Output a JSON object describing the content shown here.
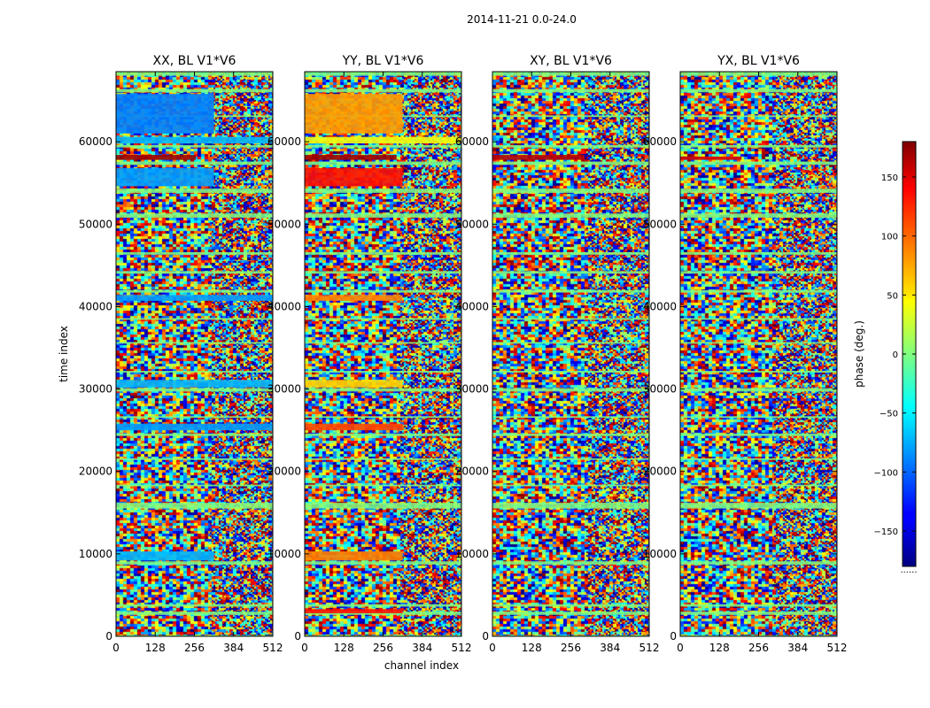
{
  "chart_data": {
    "type": "heatmap",
    "suptitle": "2014-11-21 0.0-24.0",
    "xlabel": "channel index",
    "ylabel": "time index",
    "xlim": [
      0,
      512
    ],
    "ylim": [
      0,
      68500
    ],
    "x_ticks": [
      0,
      128,
      256,
      384,
      512
    ],
    "x_tick_labels": [
      "0",
      "128",
      "256",
      "384",
      "512"
    ],
    "y_ticks": [
      0,
      10000,
      20000,
      30000,
      40000,
      50000,
      60000
    ],
    "y_tick_labels": [
      "0",
      "10000",
      "20000",
      "30000",
      "40000",
      "50000",
      "60000"
    ],
    "colormap": "jet",
    "colorbar": {
      "label": "phase (deg.)",
      "range": [
        -180,
        180
      ],
      "ticks": [
        -150,
        -100,
        -50,
        0,
        50,
        100,
        150
      ],
      "tick_labels": [
        "−150",
        "−100",
        "−50",
        "0",
        "50",
        "100",
        "150"
      ],
      "footer": "......"
    },
    "panels": [
      {
        "title": "XX, BL V1*V6",
        "stable_bands": [
          {
            "t0": 54600,
            "t1": 56800,
            "c1": 320,
            "phase": -80
          },
          {
            "t0": 61000,
            "t1": 65800,
            "c1": 320,
            "phase": -90
          },
          {
            "t0": 59800,
            "t1": 60600,
            "c1": 512,
            "phase": -70
          },
          {
            "t0": 57800,
            "t1": 58400,
            "c1": 260,
            "phase": 170
          },
          {
            "t0": 40700,
            "t1": 41400,
            "c1": 512,
            "phase": -80
          },
          {
            "t0": 30200,
            "t1": 31100,
            "c1": 512,
            "phase": -70
          },
          {
            "t0": 25000,
            "t1": 25800,
            "c1": 512,
            "phase": -80
          },
          {
            "t0": 9200,
            "t1": 10300,
            "c1": 320,
            "phase": -70
          }
        ]
      },
      {
        "title": "YY, BL V1*V6",
        "stable_bands": [
          {
            "t0": 54600,
            "t1": 56800,
            "c1": 320,
            "phase": 130
          },
          {
            "t0": 61000,
            "t1": 65800,
            "c1": 320,
            "phase": 80
          },
          {
            "t0": 59800,
            "t1": 60600,
            "c1": 512,
            "phase": 40
          },
          {
            "t0": 57800,
            "t1": 58400,
            "c1": 300,
            "phase": 170
          },
          {
            "t0": 40700,
            "t1": 41400,
            "c1": 320,
            "phase": 90
          },
          {
            "t0": 30200,
            "t1": 31100,
            "c1": 320,
            "phase": 60
          },
          {
            "t0": 25000,
            "t1": 25800,
            "c1": 320,
            "phase": 110
          },
          {
            "t0": 9200,
            "t1": 10300,
            "c1": 320,
            "phase": 90
          },
          {
            "t0": 2800,
            "t1": 3300,
            "c1": 320,
            "phase": 130
          }
        ]
      },
      {
        "title": "XY, BL V1*V6",
        "stable_bands": [
          {
            "t0": 57800,
            "t1": 58400,
            "c1": 300,
            "phase": 160
          }
        ]
      },
      {
        "title": "YX, BL V1*V6",
        "stable_bands": [
          {
            "t0": 57800,
            "t1": 58200,
            "c1": 200,
            "phase": 150
          }
        ]
      }
    ],
    "flagged_rows": [
      {
        "t0": 0,
        "t1": 120
      },
      {
        "t0": 2600,
        "t1": 3000
      },
      {
        "t0": 3600,
        "t1": 3900
      },
      {
        "t0": 8700,
        "t1": 9100
      },
      {
        "t0": 15500,
        "t1": 16200
      },
      {
        "t0": 18200,
        "t1": 18400
      },
      {
        "t0": 21400,
        "t1": 21600
      },
      {
        "t0": 24300,
        "t1": 24600
      },
      {
        "t0": 26500,
        "t1": 26700
      },
      {
        "t0": 29700,
        "t1": 30100
      },
      {
        "t0": 32000,
        "t1": 32200
      },
      {
        "t0": 35500,
        "t1": 35700
      },
      {
        "t0": 38400,
        "t1": 38600
      },
      {
        "t0": 41700,
        "t1": 42000
      },
      {
        "t0": 44000,
        "t1": 44300
      },
      {
        "t0": 46300,
        "t1": 46600
      },
      {
        "t0": 50800,
        "t1": 51300
      },
      {
        "t0": 53800,
        "t1": 54300
      },
      {
        "t0": 57200,
        "t1": 57600
      },
      {
        "t0": 59300,
        "t1": 59600
      },
      {
        "t0": 63000,
        "t1": 63200
      },
      {
        "t0": 66000,
        "t1": 66400
      },
      {
        "t0": 68000,
        "t1": 68500
      }
    ]
  }
}
